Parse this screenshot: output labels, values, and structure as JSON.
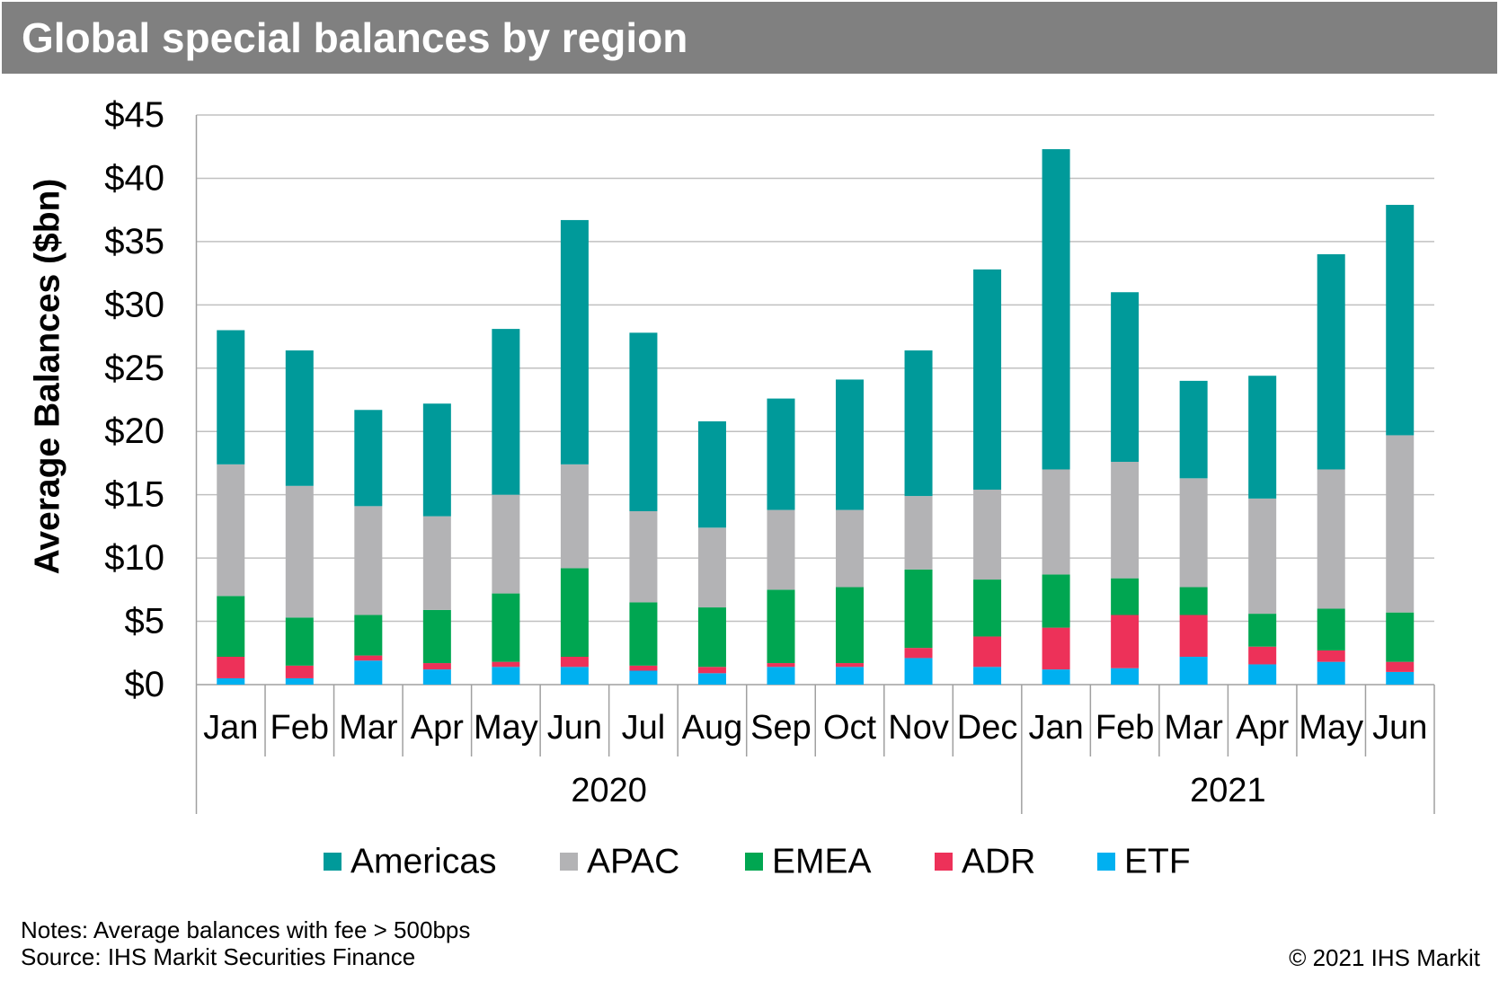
{
  "chart_data": {
    "type": "bar",
    "stacked": true,
    "title": "Global special balances by region",
    "ylabel": "Average Balances ($bn)",
    "ylim": [
      0,
      45
    ],
    "yticks": [
      {
        "value": 0,
        "label": "$0"
      },
      {
        "value": 5,
        "label": "$5"
      },
      {
        "value": 10,
        "label": "$10"
      },
      {
        "value": 15,
        "label": "$15"
      },
      {
        "value": 20,
        "label": "$20"
      },
      {
        "value": 25,
        "label": "$25"
      },
      {
        "value": 30,
        "label": "$30"
      },
      {
        "value": 35,
        "label": "$35"
      },
      {
        "value": 40,
        "label": "$40"
      },
      {
        "value": 45,
        "label": "$45"
      }
    ],
    "categories": [
      "Jan",
      "Feb",
      "Mar",
      "Apr",
      "May",
      "Jun",
      "Jul",
      "Aug",
      "Sep",
      "Oct",
      "Nov",
      "Dec",
      "Jan",
      "Feb",
      "Mar",
      "Apr",
      "May",
      "Jun"
    ],
    "category_groups": [
      {
        "label": "2020",
        "count": 12
      },
      {
        "label": "2021",
        "count": 6
      }
    ],
    "grid": true,
    "legend_position": "bottom",
    "series": [
      {
        "name": "Americas",
        "color": "#009A9A",
        "values": [
          10.6,
          10.7,
          7.6,
          8.9,
          13.1,
          19.3,
          14.1,
          8.4,
          8.8,
          10.3,
          11.5,
          17.4,
          25.3,
          13.4,
          7.7,
          9.7,
          17.0,
          18.2
        ]
      },
      {
        "name": "APAC",
        "color": "#B3B3B5",
        "values": [
          10.4,
          10.4,
          8.6,
          7.4,
          7.8,
          8.2,
          7.2,
          6.3,
          6.3,
          6.1,
          5.8,
          7.1,
          8.3,
          9.2,
          8.6,
          9.1,
          11.0,
          14.0
        ]
      },
      {
        "name": "EMEA",
        "color": "#00A651",
        "values": [
          4.8,
          3.8,
          3.2,
          4.2,
          5.4,
          7.0,
          5.0,
          4.7,
          5.8,
          6.0,
          6.2,
          4.5,
          4.2,
          2.9,
          2.2,
          2.6,
          3.3,
          3.9
        ]
      },
      {
        "name": "ADR",
        "color": "#ED3159",
        "values": [
          1.7,
          1.0,
          0.4,
          0.5,
          0.4,
          0.8,
          0.4,
          0.5,
          0.3,
          0.3,
          0.8,
          2.4,
          3.3,
          4.2,
          3.3,
          1.4,
          0.9,
          0.8
        ]
      },
      {
        "name": "ETF",
        "color": "#00B0F0",
        "values": [
          0.5,
          0.5,
          1.9,
          1.2,
          1.4,
          1.4,
          1.1,
          0.9,
          1.4,
          1.4,
          2.1,
          1.4,
          1.2,
          1.3,
          2.2,
          1.6,
          1.8,
          1.0
        ]
      }
    ]
  },
  "footer": {
    "notes": "Notes: Average balances with fee > 500bps",
    "source": "Source: IHS Markit Securities Finance",
    "copyright": "© 2021 IHS Markit"
  }
}
